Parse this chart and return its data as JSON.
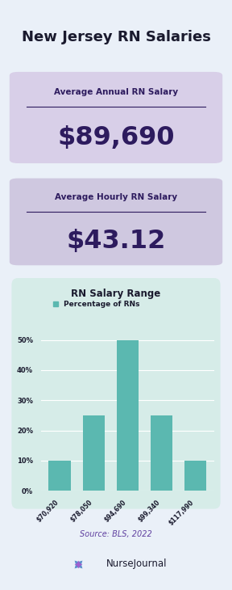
{
  "title": "New Jersey RN Salaries",
  "title_color": "#1a1a2e",
  "bg_color": "#eaf0f8",
  "annual_label": "Average Annual RN Salary",
  "annual_value": "$89,690",
  "hourly_label": "Average Hourly RN Salary",
  "hourly_value": "$43.12",
  "card1_bg": "#d8cfe8",
  "card2_bg": "#cfc8e0",
  "chart_bg": "#d6ece8",
  "card_text_color": "#2d1b5e",
  "bar_color": "#5bb8b0",
  "bar_categories": [
    "$70,920",
    "$78,050",
    "$94,690",
    "$99,340",
    "$117,990"
  ],
  "bar_values": [
    10,
    25,
    50,
    25,
    10
  ],
  "chart_title": "RN Salary Range",
  "chart_legend": "Percentage of RNs",
  "ytick_labels": [
    "0%",
    "10%",
    "20%",
    "30%",
    "40%",
    "50%"
  ],
  "ytick_values": [
    0,
    10,
    20,
    30,
    40,
    50
  ],
  "source_text": "Source: BLS, 2022",
  "source_color": "#6040a0",
  "footer_text": "NurseJournal"
}
